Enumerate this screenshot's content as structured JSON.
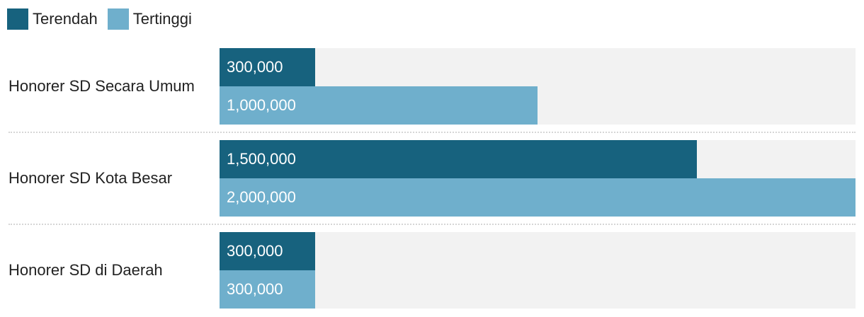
{
  "chart_data": {
    "type": "bar",
    "orientation": "horizontal",
    "categories": [
      "Honorer SD Secara Umum",
      "Honorer SD Kota Besar",
      "Honorer SD di Daerah"
    ],
    "series": [
      {
        "name": "Terendah",
        "values": [
          300000,
          1500000,
          300000
        ],
        "color": "#17627e"
      },
      {
        "name": "Tertinggi",
        "values": [
          1000000,
          2000000,
          300000
        ],
        "color": "#6fafcc"
      }
    ],
    "value_labels": [
      [
        "300,000",
        "1,000,000"
      ],
      [
        "1,500,000",
        "2,000,000"
      ],
      [
        "300,000",
        "300,000"
      ]
    ],
    "xlim": [
      0,
      2000000
    ],
    "legend": "top-left",
    "grid": false
  }
}
